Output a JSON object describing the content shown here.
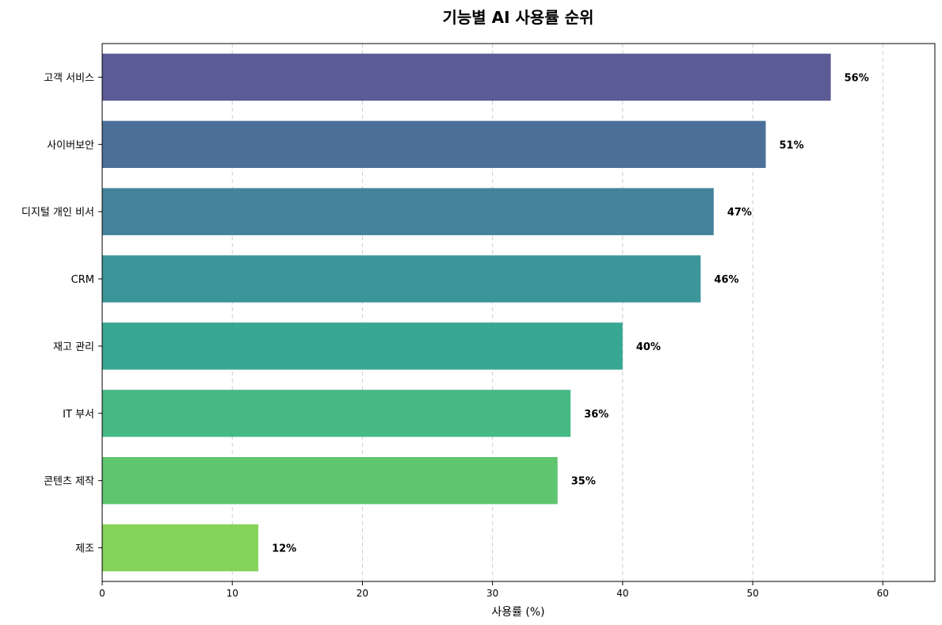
{
  "chart_data": {
    "type": "bar",
    "orientation": "horizontal",
    "title": "기능별 AI 사용률 순위",
    "xlabel": "사용률 (%)",
    "ylabel": "",
    "xlim": [
      0,
      64
    ],
    "xticks": [
      0,
      10,
      20,
      30,
      40,
      50,
      60
    ],
    "grid": "x-dashed",
    "categories": [
      "고객 서비스",
      "사이버보안",
      "디지털 개인 비서",
      "CRM",
      "재고 관리",
      "IT 부서",
      "콘텐츠 제작",
      "제조"
    ],
    "values": [
      56,
      51,
      47,
      46,
      40,
      36,
      35,
      12
    ],
    "value_labels": [
      "56%",
      "51%",
      "47%",
      "46%",
      "40%",
      "36%",
      "35%",
      "12%"
    ],
    "colors": [
      "#5b5b96",
      "#4c7099",
      "#43839b",
      "#3b969a",
      "#39a892",
      "#46b985",
      "#5fc56f",
      "#86d35b"
    ]
  }
}
